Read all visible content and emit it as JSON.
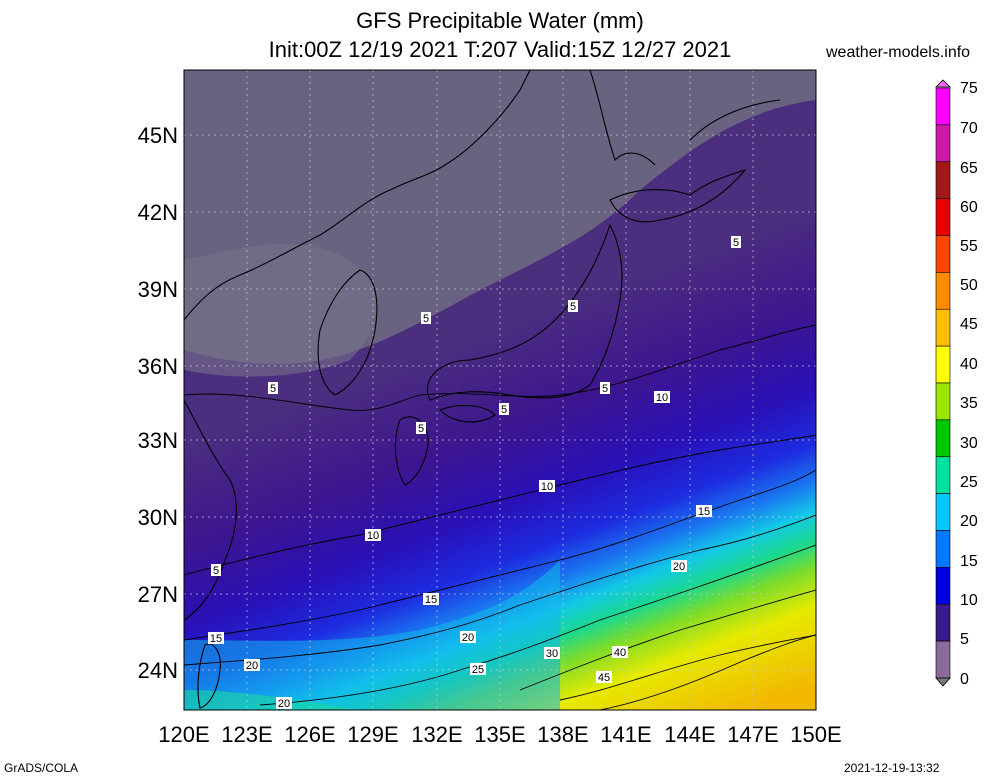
{
  "title": {
    "line1": "GFS Precipitable Water (mm)",
    "line2": "Init:00Z 12/19 2021 T:207 Valid:15Z 12/27 2021"
  },
  "site": "weather-models.info",
  "footer": {
    "left": "GrADS/COLA",
    "right": "2021-12-19-13:32"
  },
  "map": {
    "latitude_labels": [
      "45N",
      "42N",
      "39N",
      "36N",
      "33N",
      "30N",
      "27N",
      "24N"
    ],
    "longitude_labels": [
      "120E",
      "123E",
      "126E",
      "129E",
      "132E",
      "135E",
      "138E",
      "141E",
      "144E",
      "147E",
      "150E"
    ]
  },
  "colorbar": {
    "labels": [
      "75",
      "70",
      "65",
      "60",
      "55",
      "50",
      "45",
      "40",
      "35",
      "30",
      "25",
      "20",
      "15",
      "10",
      "5",
      "0"
    ],
    "colors": [
      "#ff00ff",
      "#cc1aa8",
      "#a01818",
      "#e80000",
      "#ff4500",
      "#ff8c00",
      "#ffbf00",
      "#ffff00",
      "#9ae600",
      "#00c800",
      "#00e0a0",
      "#00c8ff",
      "#0078ff",
      "#0000e0",
      "#3a1a8a",
      "#8a6a9a"
    ]
  },
  "contour_labels": [
    "5",
    "5",
    "5",
    "5",
    "5",
    "5",
    "5",
    "5",
    "10",
    "10",
    "10",
    "15",
    "15",
    "15",
    "20",
    "20",
    "20",
    "20",
    "25",
    "25",
    "30",
    "40",
    "45"
  ]
}
